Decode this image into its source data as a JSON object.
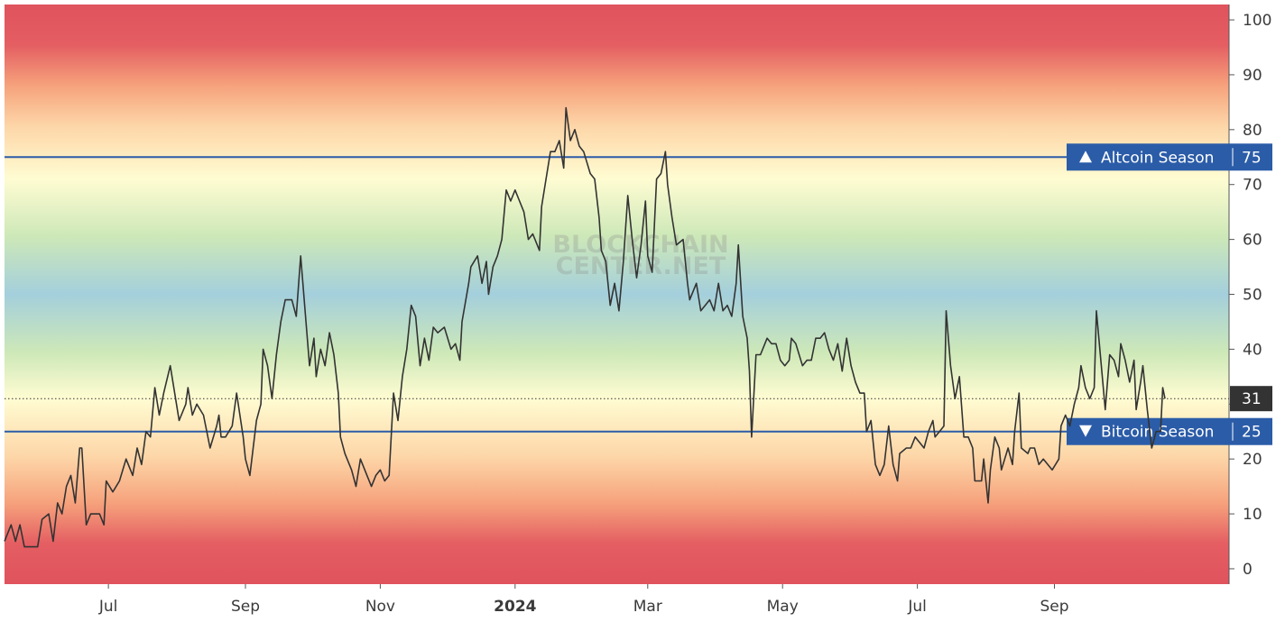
{
  "chart_data": {
    "type": "line",
    "color": "#333333",
    "watermark": [
      "BLOCKCHAIN",
      "CENTER.NET"
    ],
    "xlim": [
      -47,
      507
    ],
    "xticks": [
      {
        "value": 0,
        "label": "Jul"
      },
      {
        "value": 62,
        "label": "Sep"
      },
      {
        "value": 123,
        "label": "Nov"
      },
      {
        "value": 184,
        "label": "2024"
      },
      {
        "value": 244,
        "label": "Mar"
      },
      {
        "value": 305,
        "label": "May"
      },
      {
        "value": 366,
        "label": "Jul"
      },
      {
        "value": 428,
        "label": "Sep"
      }
    ],
    "ylim": [
      -2.8,
      102.8
    ],
    "yticks": [
      0,
      10,
      20,
      30,
      40,
      50,
      60,
      70,
      80,
      90,
      100
    ],
    "thresholds": [
      {
        "label": "Altcoin Season",
        "value": 75,
        "direction": "up",
        "color": "#2b5ca8"
      },
      {
        "label": "Bitcoin Season",
        "value": 25,
        "direction": "down",
        "color": "#2b5ca8"
      }
    ],
    "x": [
      -47,
      -44,
      -42,
      -40,
      -38,
      -32,
      -30,
      -27,
      -25,
      -23,
      -21,
      -19,
      -17,
      -15,
      -13,
      -12,
      -10,
      -8,
      -4,
      -2,
      -1,
      2,
      5,
      8,
      11,
      13,
      15,
      17,
      19,
      21,
      23,
      25,
      28,
      30,
      32,
      35,
      36,
      38,
      40,
      43,
      46,
      49,
      50,
      51,
      53,
      56,
      58,
      61,
      62,
      64,
      67,
      69,
      70,
      72,
      74,
      76,
      78,
      80,
      83,
      85,
      87,
      89,
      91,
      93,
      94,
      96,
      98,
      100,
      102,
      104,
      105,
      107,
      110,
      112,
      114,
      117,
      119,
      121,
      123,
      125,
      127,
      129,
      131,
      133,
      135,
      137,
      139,
      141,
      143,
      145,
      147,
      149,
      152,
      155,
      157,
      159,
      160,
      163,
      164,
      167,
      169,
      171,
      172,
      174,
      176,
      178,
      180,
      182,
      184,
      186,
      188,
      190,
      192,
      195,
      196,
      198,
      200,
      202,
      204,
      206,
      207,
      209,
      211,
      213,
      215,
      218,
      220,
      222,
      223,
      225,
      227,
      229,
      231,
      233,
      235,
      237,
      239,
      241,
      243,
      244,
      246,
      248,
      250,
      252,
      253,
      255,
      257,
      260,
      262,
      263,
      266,
      268,
      270,
      272,
      274,
      276,
      278,
      280,
      282,
      284,
      285,
      287,
      289,
      290,
      291,
      293,
      295,
      298,
      300,
      302,
      304,
      306,
      308,
      309,
      311,
      314,
      316,
      318,
      320,
      322,
      324,
      326,
      328,
      330,
      332,
      334,
      336,
      338,
      340,
      342,
      343,
      345,
      347,
      349,
      351,
      353,
      355,
      357,
      358,
      361,
      363,
      365,
      367,
      369,
      371,
      373,
      374,
      376,
      378,
      379,
      381,
      383,
      385,
      387,
      389,
      391,
      392,
      395,
      396,
      398,
      399,
      401,
      403,
      404,
      407,
      409,
      410,
      412,
      413,
      416,
      417,
      419,
      421,
      423,
      425,
      427,
      430,
      431,
      433,
      435,
      437,
      439,
      440,
      442,
      444,
      446,
      447,
      449,
      451,
      453,
      455,
      457,
      458,
      460,
      462,
      464,
      465,
      467,
      468,
      470,
      472,
      474,
      476,
      477,
      478
    ],
    "values": [
      5,
      8,
      5,
      8,
      4,
      4,
      9,
      10,
      5,
      12,
      10,
      15,
      17,
      12,
      22,
      22,
      8,
      10,
      10,
      8,
      16,
      14,
      16,
      20,
      17,
      22,
      19,
      25,
      24,
      33,
      28,
      32,
      37,
      32,
      27,
      30,
      33,
      28,
      30,
      28,
      22,
      26,
      28,
      24,
      24,
      26,
      32,
      24,
      20,
      17,
      27,
      30,
      40,
      37,
      31,
      39,
      45,
      49,
      49,
      46,
      57,
      47,
      37,
      42,
      35,
      40,
      37,
      43,
      39,
      32,
      24,
      21,
      18,
      15,
      20,
      17,
      15,
      17,
      18,
      16,
      17,
      32,
      27,
      35,
      40,
      48,
      46,
      37,
      42,
      38,
      44,
      43,
      44,
      40,
      41,
      38,
      45,
      52,
      55,
      57,
      52,
      56,
      50,
      55,
      57,
      60,
      69,
      67,
      69,
      67,
      65,
      60,
      61,
      58,
      66,
      71,
      76,
      76,
      78,
      73,
      84,
      78,
      80,
      77,
      76,
      72,
      71,
      64,
      58,
      56,
      48,
      52,
      47,
      56,
      68,
      60,
      53,
      59,
      67,
      57,
      54,
      71,
      72,
      76,
      70,
      64,
      59,
      60,
      52,
      49,
      52,
      47,
      48,
      49,
      47,
      52,
      47,
      48,
      46,
      52,
      59,
      46,
      42,
      36,
      24,
      39,
      39,
      42,
      41,
      41,
      38,
      37,
      38,
      42,
      41,
      37,
      38,
      38,
      42,
      42,
      43,
      40,
      38,
      41,
      36,
      42,
      37,
      34,
      32,
      32,
      25,
      27,
      19,
      17,
      19,
      26,
      19,
      16,
      21,
      22,
      22,
      24,
      23,
      22,
      25,
      27,
      24,
      25,
      26,
      47,
      37,
      31,
      35,
      24,
      24,
      22,
      16,
      16,
      20,
      12,
      18,
      24,
      22,
      18,
      22,
      19,
      25,
      32,
      22,
      21,
      22,
      22,
      19,
      20,
      19,
      18,
      20,
      26,
      28,
      26,
      30,
      33,
      37,
      33,
      31,
      33,
      47,
      38,
      29,
      39,
      38,
      35,
      41,
      38,
      34,
      38,
      29,
      34,
      37,
      29,
      22,
      25,
      25,
      33,
      31
    ]
  }
}
